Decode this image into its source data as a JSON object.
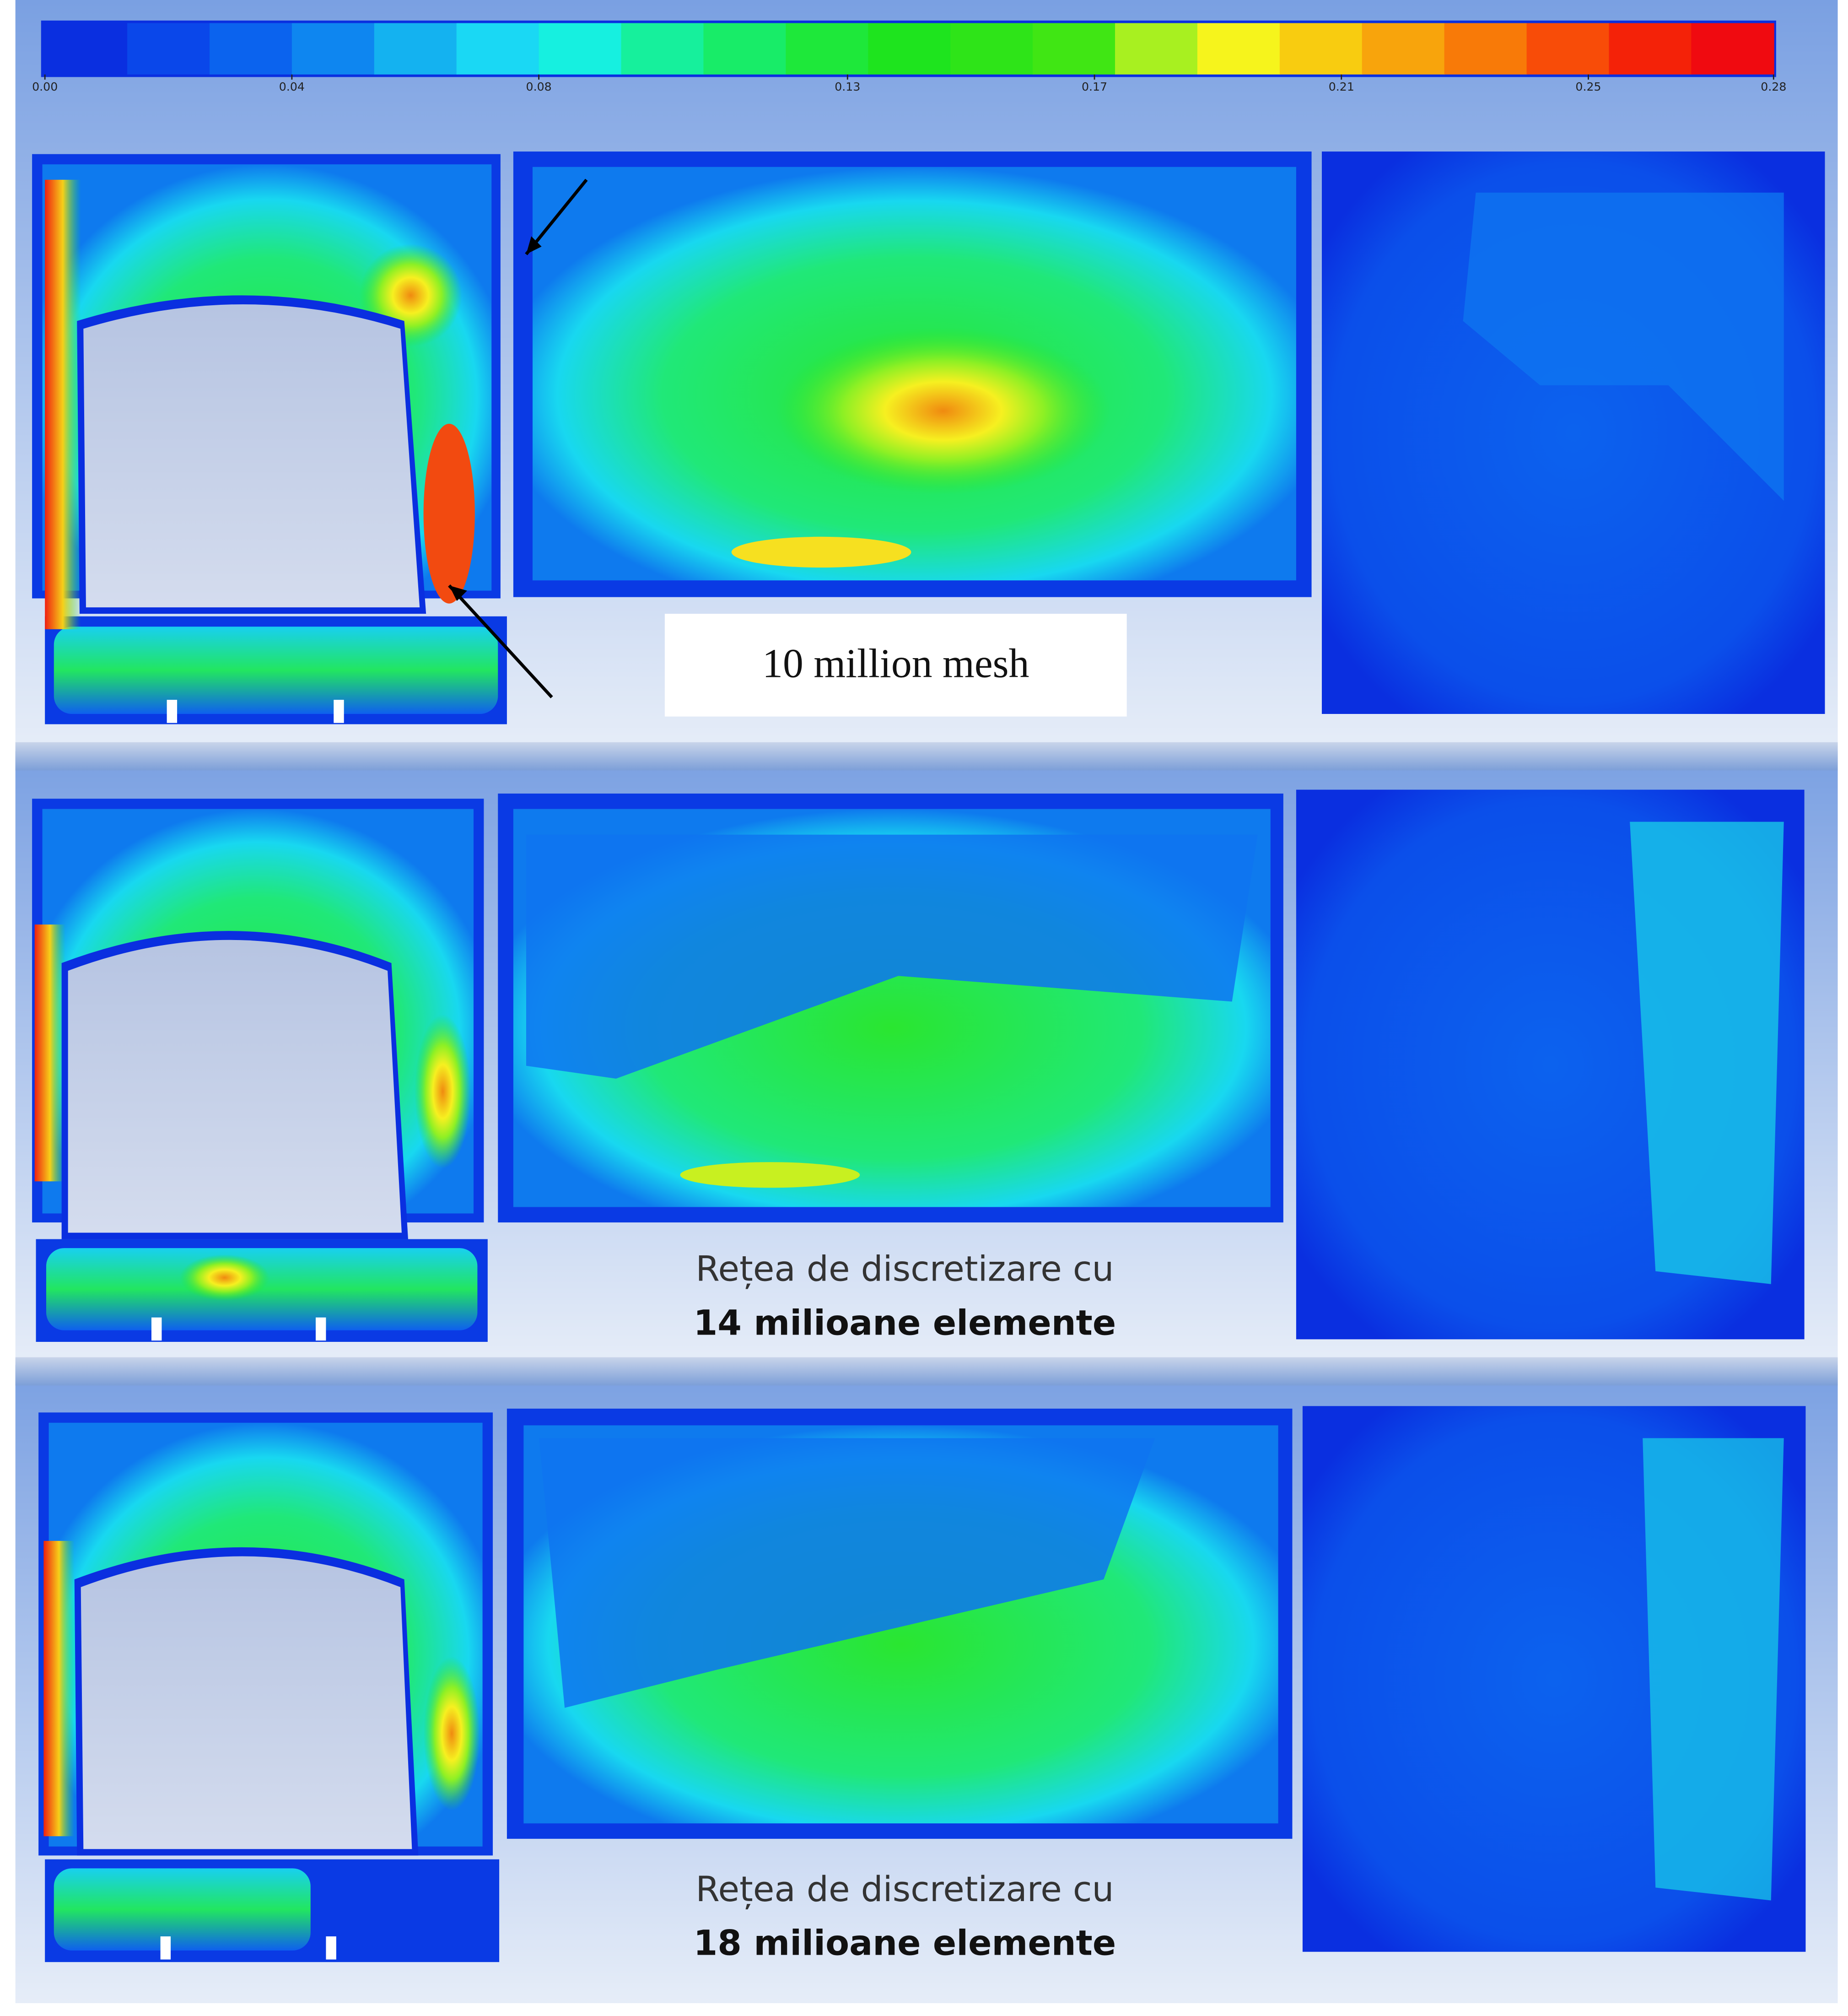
{
  "colorbar": {
    "ticks": [
      {
        "value": 0,
        "label": "0.00"
      },
      {
        "value": 0.04,
        "label": "0.04"
      },
      {
        "value": 0.08,
        "label": "0.08"
      },
      {
        "value": 0.13,
        "label": "0.13"
      },
      {
        "value": 0.17,
        "label": "0.17"
      },
      {
        "value": 0.21,
        "label": "0.21"
      },
      {
        "value": 0.25,
        "label": "0.25"
      },
      {
        "value": 0.28,
        "label": "0.28"
      }
    ],
    "range": [
      0,
      0.28
    ],
    "colors": [
      "#0a2fe0",
      "#0a47ea",
      "#0b63ee",
      "#0e86f0",
      "#14b2f0",
      "#1ad8f4",
      "#16f0e0",
      "#16f09c",
      "#18ec68",
      "#1ee83a",
      "#1ee41e",
      "#2ee418",
      "#40e614",
      "#a8f020",
      "#f6f41c",
      "#f8cc10",
      "#f8a40c",
      "#f87a08",
      "#f84c08",
      "#f42208",
      "#f00a10"
    ]
  },
  "panels": [
    {
      "label": "10 million mesh"
    },
    {
      "label": "Rețea de discretizare cu",
      "label_bold": "14 milioane elemente"
    },
    {
      "label": "Rețea de discretizare cu",
      "label_bold": "18 milioane elemente"
    }
  ]
}
